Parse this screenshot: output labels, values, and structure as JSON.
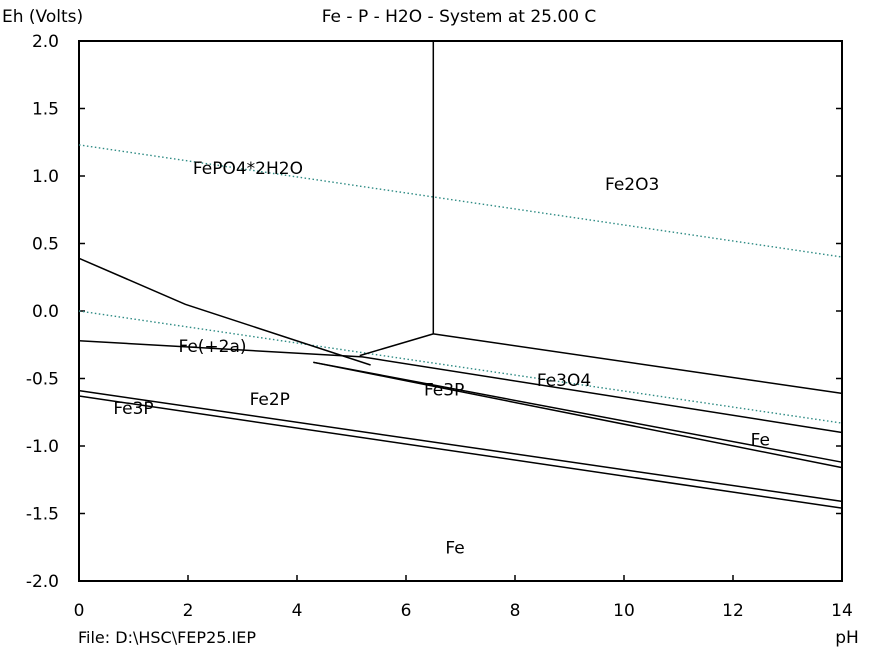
{
  "chart_data": {
    "type": "line",
    "title": "Fe - P - H2O - System at 25.00 C",
    "ylabel": "Eh (Volts)",
    "xlabel": "pH",
    "footer": "File: D:\\HSC\\FEP25.IEP",
    "xlim": [
      0,
      14
    ],
    "ylim": [
      -2.0,
      2.0
    ],
    "xticks": [
      0,
      2,
      4,
      6,
      8,
      10,
      12,
      14
    ],
    "yticks": [
      2.0,
      1.5,
      1.0,
      0.5,
      0.0,
      -0.5,
      -1.0,
      -1.5,
      -2.0
    ],
    "ytick_labels": [
      "2.0",
      "1.5",
      "1.0",
      "0.5",
      "0.0",
      "-0.5",
      "-1.0",
      "-1.5",
      "-2.0"
    ],
    "grid": false,
    "colors": {
      "boundary": "#000000",
      "water_lines": "#2e8b84"
    },
    "water_lines": [
      {
        "points": [
          [
            0,
            1.23
          ],
          [
            14,
            0.4
          ]
        ]
      },
      {
        "points": [
          [
            0,
            0.0
          ],
          [
            14,
            -0.83
          ]
        ]
      }
    ],
    "boundaries": [
      {
        "points": [
          [
            6.5,
            2.0
          ],
          [
            6.5,
            -0.17
          ]
        ]
      },
      {
        "points": [
          [
            0,
            0.39
          ],
          [
            1.95,
            0.05
          ],
          [
            5.35,
            -0.4
          ]
        ]
      },
      {
        "points": [
          [
            5.15,
            -0.33
          ],
          [
            6.5,
            -0.17
          ]
        ]
      },
      {
        "points": [
          [
            6.5,
            -0.17
          ],
          [
            14,
            -0.61
          ]
        ]
      },
      {
        "points": [
          [
            0,
            -0.22
          ],
          [
            5.2,
            -0.34
          ],
          [
            14,
            -0.9
          ]
        ]
      },
      {
        "points": [
          [
            4.3,
            -0.38
          ],
          [
            14,
            -1.12
          ]
        ]
      },
      {
        "points": [
          [
            4.3,
            -0.38
          ],
          [
            14,
            -1.16
          ]
        ]
      },
      {
        "points": [
          [
            0,
            -0.59
          ],
          [
            14,
            -1.41
          ]
        ]
      },
      {
        "points": [
          [
            0,
            -0.63
          ],
          [
            14,
            -1.46
          ]
        ]
      }
    ],
    "regions": [
      {
        "label": "FePO4*2H2O",
        "x": 3.1,
        "y": 1.06
      },
      {
        "label": "Fe2O3",
        "x": 10.15,
        "y": 0.94
      },
      {
        "label": "Fe(+2a)",
        "x": 2.45,
        "y": -0.26
      },
      {
        "label": "Fe3O4",
        "x": 8.9,
        "y": -0.51
      },
      {
        "label": "Fe2P",
        "x": 3.5,
        "y": -0.65
      },
      {
        "label": "Fe3P",
        "x": 6.7,
        "y": -0.58
      },
      {
        "label": "Fe3P",
        "x": 1.0,
        "y": -0.72
      },
      {
        "label": "Fe",
        "x": 12.5,
        "y": -0.95
      },
      {
        "label": "Fe",
        "x": 6.9,
        "y": -1.75
      }
    ]
  }
}
